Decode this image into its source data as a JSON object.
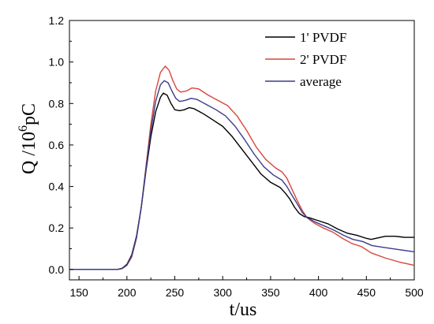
{
  "chart_data": {
    "type": "line",
    "xlabel": "t/us",
    "ylabel": "Q /10",
    "ylabel_sup": "6",
    "ylabel_unit": "pC",
    "xlim": [
      140,
      500
    ],
    "ylim": [
      -0.05,
      1.2
    ],
    "xticks": [
      150,
      200,
      250,
      300,
      350,
      400,
      450,
      500
    ],
    "yticks": [
      0.0,
      0.2,
      0.4,
      0.6,
      0.8,
      1.0,
      1.2
    ],
    "ytick_labels": [
      "0.0",
      "0.2",
      "0.4",
      "0.6",
      "0.8",
      "1.0",
      "1.2"
    ],
    "grid": false,
    "legend_position": "top-right",
    "series": [
      {
        "name": "1' PVDF",
        "color": "#000000",
        "points": [
          [
            140,
            0.0
          ],
          [
            180,
            0.0
          ],
          [
            190,
            0.0
          ],
          [
            195,
            0.006
          ],
          [
            200,
            0.025
          ],
          [
            205,
            0.07
          ],
          [
            210,
            0.16
          ],
          [
            215,
            0.3
          ],
          [
            220,
            0.48
          ],
          [
            225,
            0.64
          ],
          [
            230,
            0.76
          ],
          [
            235,
            0.83
          ],
          [
            238,
            0.85
          ],
          [
            242,
            0.84
          ],
          [
            246,
            0.8
          ],
          [
            250,
            0.77
          ],
          [
            255,
            0.765
          ],
          [
            260,
            0.77
          ],
          [
            265,
            0.78
          ],
          [
            270,
            0.775
          ],
          [
            280,
            0.75
          ],
          [
            290,
            0.72
          ],
          [
            300,
            0.69
          ],
          [
            310,
            0.64
          ],
          [
            320,
            0.58
          ],
          [
            330,
            0.52
          ],
          [
            340,
            0.46
          ],
          [
            350,
            0.42
          ],
          [
            360,
            0.395
          ],
          [
            365,
            0.37
          ],
          [
            370,
            0.34
          ],
          [
            375,
            0.3
          ],
          [
            380,
            0.27
          ],
          [
            385,
            0.255
          ],
          [
            390,
            0.25
          ],
          [
            400,
            0.235
          ],
          [
            410,
            0.22
          ],
          [
            420,
            0.195
          ],
          [
            430,
            0.175
          ],
          [
            440,
            0.165
          ],
          [
            450,
            0.15
          ],
          [
            455,
            0.145
          ],
          [
            460,
            0.15
          ],
          [
            470,
            0.16
          ],
          [
            480,
            0.16
          ],
          [
            490,
            0.155
          ],
          [
            500,
            0.155
          ]
        ]
      },
      {
        "name": "2' PVDF",
        "color": "#d9463c",
        "points": [
          [
            140,
            0.0
          ],
          [
            180,
            0.0
          ],
          [
            190,
            0.0
          ],
          [
            195,
            0.004
          ],
          [
            200,
            0.02
          ],
          [
            205,
            0.06
          ],
          [
            210,
            0.15
          ],
          [
            215,
            0.3
          ],
          [
            220,
            0.5
          ],
          [
            225,
            0.7
          ],
          [
            230,
            0.86
          ],
          [
            235,
            0.95
          ],
          [
            240,
            0.98
          ],
          [
            244,
            0.96
          ],
          [
            248,
            0.91
          ],
          [
            252,
            0.87
          ],
          [
            256,
            0.855
          ],
          [
            262,
            0.86
          ],
          [
            268,
            0.875
          ],
          [
            275,
            0.87
          ],
          [
            285,
            0.84
          ],
          [
            295,
            0.815
          ],
          [
            305,
            0.79
          ],
          [
            315,
            0.74
          ],
          [
            325,
            0.67
          ],
          [
            335,
            0.59
          ],
          [
            345,
            0.53
          ],
          [
            355,
            0.49
          ],
          [
            362,
            0.47
          ],
          [
            367,
            0.44
          ],
          [
            372,
            0.39
          ],
          [
            378,
            0.33
          ],
          [
            383,
            0.285
          ],
          [
            388,
            0.25
          ],
          [
            395,
            0.225
          ],
          [
            405,
            0.2
          ],
          [
            415,
            0.18
          ],
          [
            425,
            0.15
          ],
          [
            435,
            0.125
          ],
          [
            445,
            0.11
          ],
          [
            455,
            0.08
          ],
          [
            470,
            0.055
          ],
          [
            485,
            0.035
          ],
          [
            500,
            0.02
          ]
        ]
      },
      {
        "name": "average",
        "color": "#3c3c8c",
        "points": [
          [
            140,
            0.0
          ],
          [
            180,
            0.0
          ],
          [
            190,
            0.0
          ],
          [
            195,
            0.005
          ],
          [
            200,
            0.022
          ],
          [
            205,
            0.065
          ],
          [
            210,
            0.155
          ],
          [
            215,
            0.3
          ],
          [
            220,
            0.49
          ],
          [
            225,
            0.67
          ],
          [
            230,
            0.81
          ],
          [
            235,
            0.89
          ],
          [
            239,
            0.91
          ],
          [
            243,
            0.9
          ],
          [
            247,
            0.86
          ],
          [
            251,
            0.825
          ],
          [
            255,
            0.81
          ],
          [
            261,
            0.815
          ],
          [
            267,
            0.825
          ],
          [
            273,
            0.82
          ],
          [
            283,
            0.795
          ],
          [
            293,
            0.77
          ],
          [
            303,
            0.74
          ],
          [
            313,
            0.69
          ],
          [
            323,
            0.625
          ],
          [
            333,
            0.555
          ],
          [
            343,
            0.495
          ],
          [
            353,
            0.455
          ],
          [
            362,
            0.43
          ],
          [
            367,
            0.4
          ],
          [
            372,
            0.36
          ],
          [
            378,
            0.315
          ],
          [
            383,
            0.275
          ],
          [
            388,
            0.25
          ],
          [
            396,
            0.23
          ],
          [
            406,
            0.21
          ],
          [
            416,
            0.19
          ],
          [
            426,
            0.165
          ],
          [
            436,
            0.145
          ],
          [
            446,
            0.135
          ],
          [
            456,
            0.115
          ],
          [
            470,
            0.105
          ],
          [
            485,
            0.095
          ],
          [
            500,
            0.085
          ]
        ]
      }
    ]
  }
}
